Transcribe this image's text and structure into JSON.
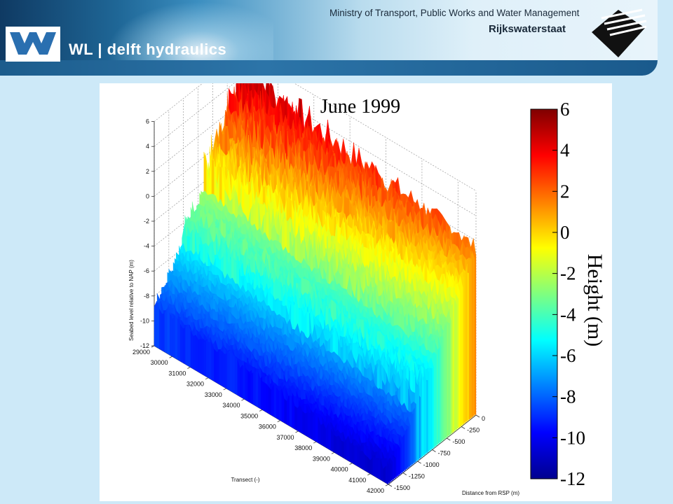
{
  "header": {
    "company": "WL | delft hydraulics",
    "ministry": "Ministry of Transport, Public Works and Water Management",
    "agency": "Rijkswaterstaat"
  },
  "colors": {
    "banner_dark": "#0f3a63",
    "background": "#cde9f8"
  },
  "chart_data": {
    "type": "surface3d",
    "title": "June 1999",
    "zlabel": "Seabed level relative to NAP (m)",
    "xlabel": "Transect (-)",
    "ylabel": "Distance from RSP (m)",
    "z_ticks": [
      "6",
      "4",
      "2",
      "0",
      "-2",
      "-4",
      "-6",
      "-8",
      "-10",
      "-12"
    ],
    "x_ticks": [
      "29000",
      "30000",
      "31000",
      "32000",
      "33000",
      "34000",
      "35000",
      "36000",
      "37000",
      "38000",
      "39000",
      "40000",
      "41000",
      "42000"
    ],
    "y_ticks": [
      "0",
      "-250",
      "-500",
      "-750",
      "-1000",
      "-1250",
      "-1500"
    ],
    "zlim": [
      -12,
      6
    ],
    "xlim": [
      29000,
      42000
    ],
    "ylim": [
      -1500,
      0
    ],
    "colorbar": {
      "label": "Height (m)",
      "ticks": [
        "6",
        "4",
        "2",
        "0",
        "-2",
        "-4",
        "-6",
        "-8",
        "-10",
        "-12"
      ],
      "range": [
        -12,
        6
      ],
      "colormap": "jet"
    }
  }
}
